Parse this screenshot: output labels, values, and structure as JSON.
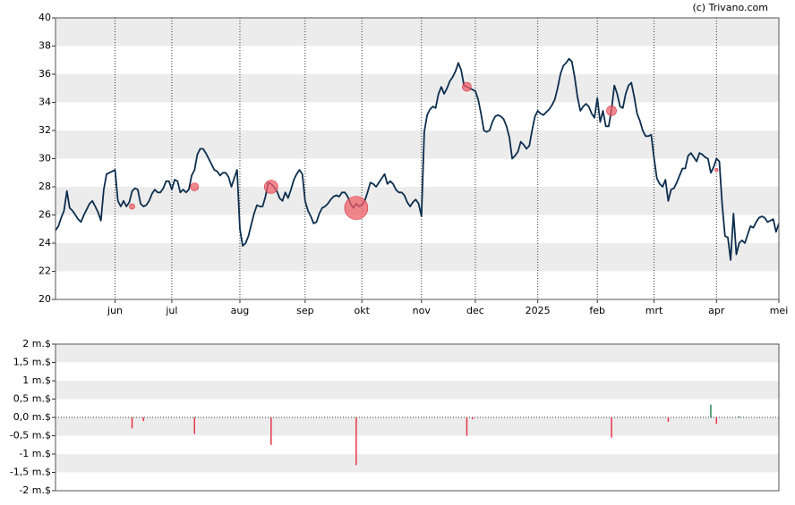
{
  "chart_data": [
    {
      "type": "line",
      "source": "(c) Trivano.com",
      "color": "#0d2e4e",
      "x": [
        0,
        1,
        2,
        3,
        4,
        5,
        6,
        7,
        8,
        9,
        10,
        11,
        12,
        13,
        14,
        15,
        16,
        17,
        18,
        19,
        20,
        21,
        22,
        23,
        24,
        25,
        26,
        27,
        28,
        29,
        30,
        31,
        32,
        33,
        34,
        35,
        36,
        37,
        38,
        39,
        40,
        41,
        42,
        43,
        44,
        45,
        46,
        47,
        48,
        49,
        50,
        51,
        52,
        53,
        54,
        55,
        56,
        57,
        58,
        59,
        60,
        61,
        62,
        63,
        64,
        65,
        66,
        67,
        68,
        69,
        70,
        71,
        72,
        73,
        74,
        75,
        76,
        77,
        78,
        79,
        80,
        81,
        82,
        83,
        84,
        85,
        86,
        87,
        88,
        89,
        90,
        91,
        92,
        93,
        94,
        95,
        96,
        97,
        98,
        99,
        100,
        101,
        102,
        103,
        104,
        105,
        106,
        107,
        108,
        109,
        110,
        111,
        112,
        113,
        114,
        115,
        116,
        117,
        118,
        119,
        120,
        121,
        122,
        123,
        124,
        125,
        126,
        127,
        128,
        129,
        130,
        131,
        132,
        133,
        134,
        135,
        136,
        137,
        138,
        139,
        140,
        141,
        142,
        143,
        144,
        145,
        146,
        147,
        148,
        149,
        150,
        151,
        152,
        153,
        154,
        155,
        156,
        157,
        158,
        159,
        160,
        161,
        162,
        163,
        164,
        165,
        166,
        167,
        168,
        169,
        170,
        171,
        172,
        173,
        174,
        175,
        176,
        177,
        178,
        179,
        180,
        181,
        182,
        183,
        184,
        185,
        186,
        187,
        188,
        189,
        190,
        191,
        192,
        193,
        194,
        195,
        196,
        197,
        198,
        199,
        200,
        201,
        202,
        203,
        204,
        205,
        206,
        207,
        208,
        209,
        210,
        211,
        212,
        213,
        214,
        215,
        216,
        217,
        218,
        219,
        220,
        221,
        222,
        223,
        224,
        225,
        226,
        227,
        228,
        229,
        230,
        231,
        232,
        233,
        234,
        235,
        236,
        237,
        238,
        239,
        240,
        241,
        242,
        243,
        244,
        245,
        246,
        247,
        248,
        249,
        250,
        251,
        252,
        253,
        254,
        255
      ],
      "values": [
        24.9,
        25.2,
        25.8,
        26.3,
        27.7,
        26.5,
        26.3,
        26.0,
        25.7,
        25.5,
        26.0,
        26.4,
        26.8,
        27.0,
        26.6,
        26.2,
        25.6,
        27.8,
        28.9,
        29.0,
        29.1,
        29.2,
        27.0,
        26.6,
        27.0,
        26.6,
        26.9,
        27.7,
        27.9,
        27.8,
        26.8,
        26.6,
        26.7,
        27.0,
        27.5,
        27.8,
        27.6,
        27.6,
        27.9,
        28.4,
        28.4,
        27.8,
        28.5,
        28.4,
        27.6,
        27.8,
        27.6,
        27.8,
        28.8,
        29.2,
        30.3,
        30.7,
        30.7,
        30.4,
        30.0,
        29.6,
        29.2,
        29.1,
        28.8,
        29.0,
        29.0,
        28.7,
        28.0,
        28.6,
        29.2,
        25.0,
        23.8,
        24.0,
        24.5,
        25.3,
        26.1,
        26.7,
        26.6,
        26.6,
        27.3,
        28.3,
        28.2,
        28.0,
        27.7,
        27.2,
        27.0,
        27.6,
        27.2,
        27.8,
        28.5,
        28.9,
        29.2,
        28.9,
        27.0,
        26.3,
        25.9,
        25.4,
        25.5,
        26.1,
        26.5,
        26.6,
        26.8,
        27.1,
        27.3,
        27.4,
        27.3,
        27.6,
        27.6,
        27.3,
        26.8,
        26.5,
        26.8,
        26.6,
        26.7,
        27.0,
        27.6,
        28.3,
        28.2,
        28.0,
        28.3,
        28.6,
        28.9,
        28.2,
        28.4,
        28.2,
        27.8,
        27.6,
        27.6,
        27.4,
        26.9,
        26.6,
        26.9,
        27.1,
        26.8,
        25.9,
        31.9,
        33.1,
        33.5,
        33.7,
        33.6,
        34.6,
        35.1,
        34.6,
        35.0,
        35.5,
        35.8,
        36.2,
        36.8,
        36.3,
        35.2,
        35.1,
        35.0,
        34.9,
        34.8,
        34.2,
        33.2,
        32.0,
        31.9,
        32.0,
        32.6,
        33.0,
        33.1,
        33.0,
        32.8,
        32.3,
        31.5,
        30.0,
        30.2,
        30.5,
        31.2,
        31.0,
        30.7,
        30.9,
        32.0,
        33.0,
        33.4,
        33.2,
        33.1,
        33.3,
        33.5,
        33.8,
        34.2,
        35.0,
        36.0,
        36.6,
        36.8,
        37.1,
        36.9,
        35.8,
        34.4,
        33.4,
        33.7,
        33.9,
        33.7,
        33.2,
        32.9,
        34.3,
        32.6,
        33.4,
        32.3,
        32.3,
        33.5,
        35.2,
        34.6,
        33.7,
        33.6,
        34.6,
        35.2,
        35.4,
        34.4,
        33.2,
        32.7,
        32.0,
        31.6,
        31.6,
        31.7,
        30.0,
        28.6,
        28.2,
        28.0,
        28.5,
        27.0,
        27.8,
        27.9,
        28.3,
        28.8,
        29.3,
        29.3,
        30.2,
        30.4,
        30.1,
        29.8,
        30.4,
        30.3,
        30.1,
        30.0,
        29.0,
        29.4,
        30.0,
        29.8,
        26.8,
        24.5,
        24.4,
        22.8,
        26.1,
        23.2,
        24.0,
        24.2,
        24.0,
        24.6,
        25.2,
        25.1,
        25.5,
        25.8,
        25.9,
        25.8,
        25.5,
        25.6,
        25.7,
        24.8,
        25.4
      ],
      "bubbles": {
        "color": "#f0606a",
        "x": [
          27,
          49,
          76,
          106,
          145,
          196,
          233
        ],
        "y": [
          26.6,
          28.0,
          28.0,
          26.5,
          35.1,
          33.4,
          29.2
        ],
        "sizes": [
          0.3,
          0.45,
          0.75,
          1.3,
          0.5,
          0.55,
          0.18
        ]
      },
      "xlim": [
        0,
        255
      ],
      "xticks": [
        {
          "value": 21,
          "label": "jun"
        },
        {
          "value": 41,
          "label": "jul"
        },
        {
          "value": 65,
          "label": "aug"
        },
        {
          "value": 88,
          "label": "sep"
        },
        {
          "value": 108,
          "label": "okt"
        },
        {
          "value": 129,
          "label": "nov"
        },
        {
          "value": 148,
          "label": "dec"
        },
        {
          "value": 170,
          "label": "2025"
        },
        {
          "value": 191,
          "label": "feb"
        },
        {
          "value": 211,
          "label": "mrt"
        },
        {
          "value": 233,
          "label": "apr"
        },
        {
          "value": 255,
          "label": "mei"
        }
      ],
      "ylim": [
        20,
        40
      ],
      "yticks": [
        20,
        22,
        24,
        26,
        28,
        30,
        32,
        34,
        36,
        38,
        40
      ],
      "grid": "bands"
    },
    {
      "type": "bar",
      "color_up": "#2e8b57",
      "color_down": "#e8374a",
      "x": [
        27,
        31,
        49,
        76,
        106,
        145,
        147,
        196,
        216,
        231,
        233,
        241
      ],
      "values": [
        -0.3,
        -0.1,
        -0.45,
        -0.75,
        -1.3,
        -0.5,
        -0.05,
        -0.55,
        -0.12,
        0.35,
        -0.18,
        0.03
      ],
      "xlim": [
        0,
        255
      ],
      "ylim": [
        -2,
        2
      ],
      "yticks": [
        {
          "value": -2,
          "label": "-2 m.$"
        },
        {
          "value": -1.5,
          "label": "-1,5 m.$"
        },
        {
          "value": -1,
          "label": "-1 m.$"
        },
        {
          "value": -0.5,
          "label": "-0,5 m.$"
        },
        {
          "value": 0,
          "label": "0,0 m.$"
        },
        {
          "value": 0.5,
          "label": "0,5 m.$"
        },
        {
          "value": 1,
          "label": "1 m.$"
        },
        {
          "value": 1.5,
          "label": "1,5 m.$"
        },
        {
          "value": 2,
          "label": "2 m.$"
        }
      ],
      "grid": "bands"
    }
  ]
}
